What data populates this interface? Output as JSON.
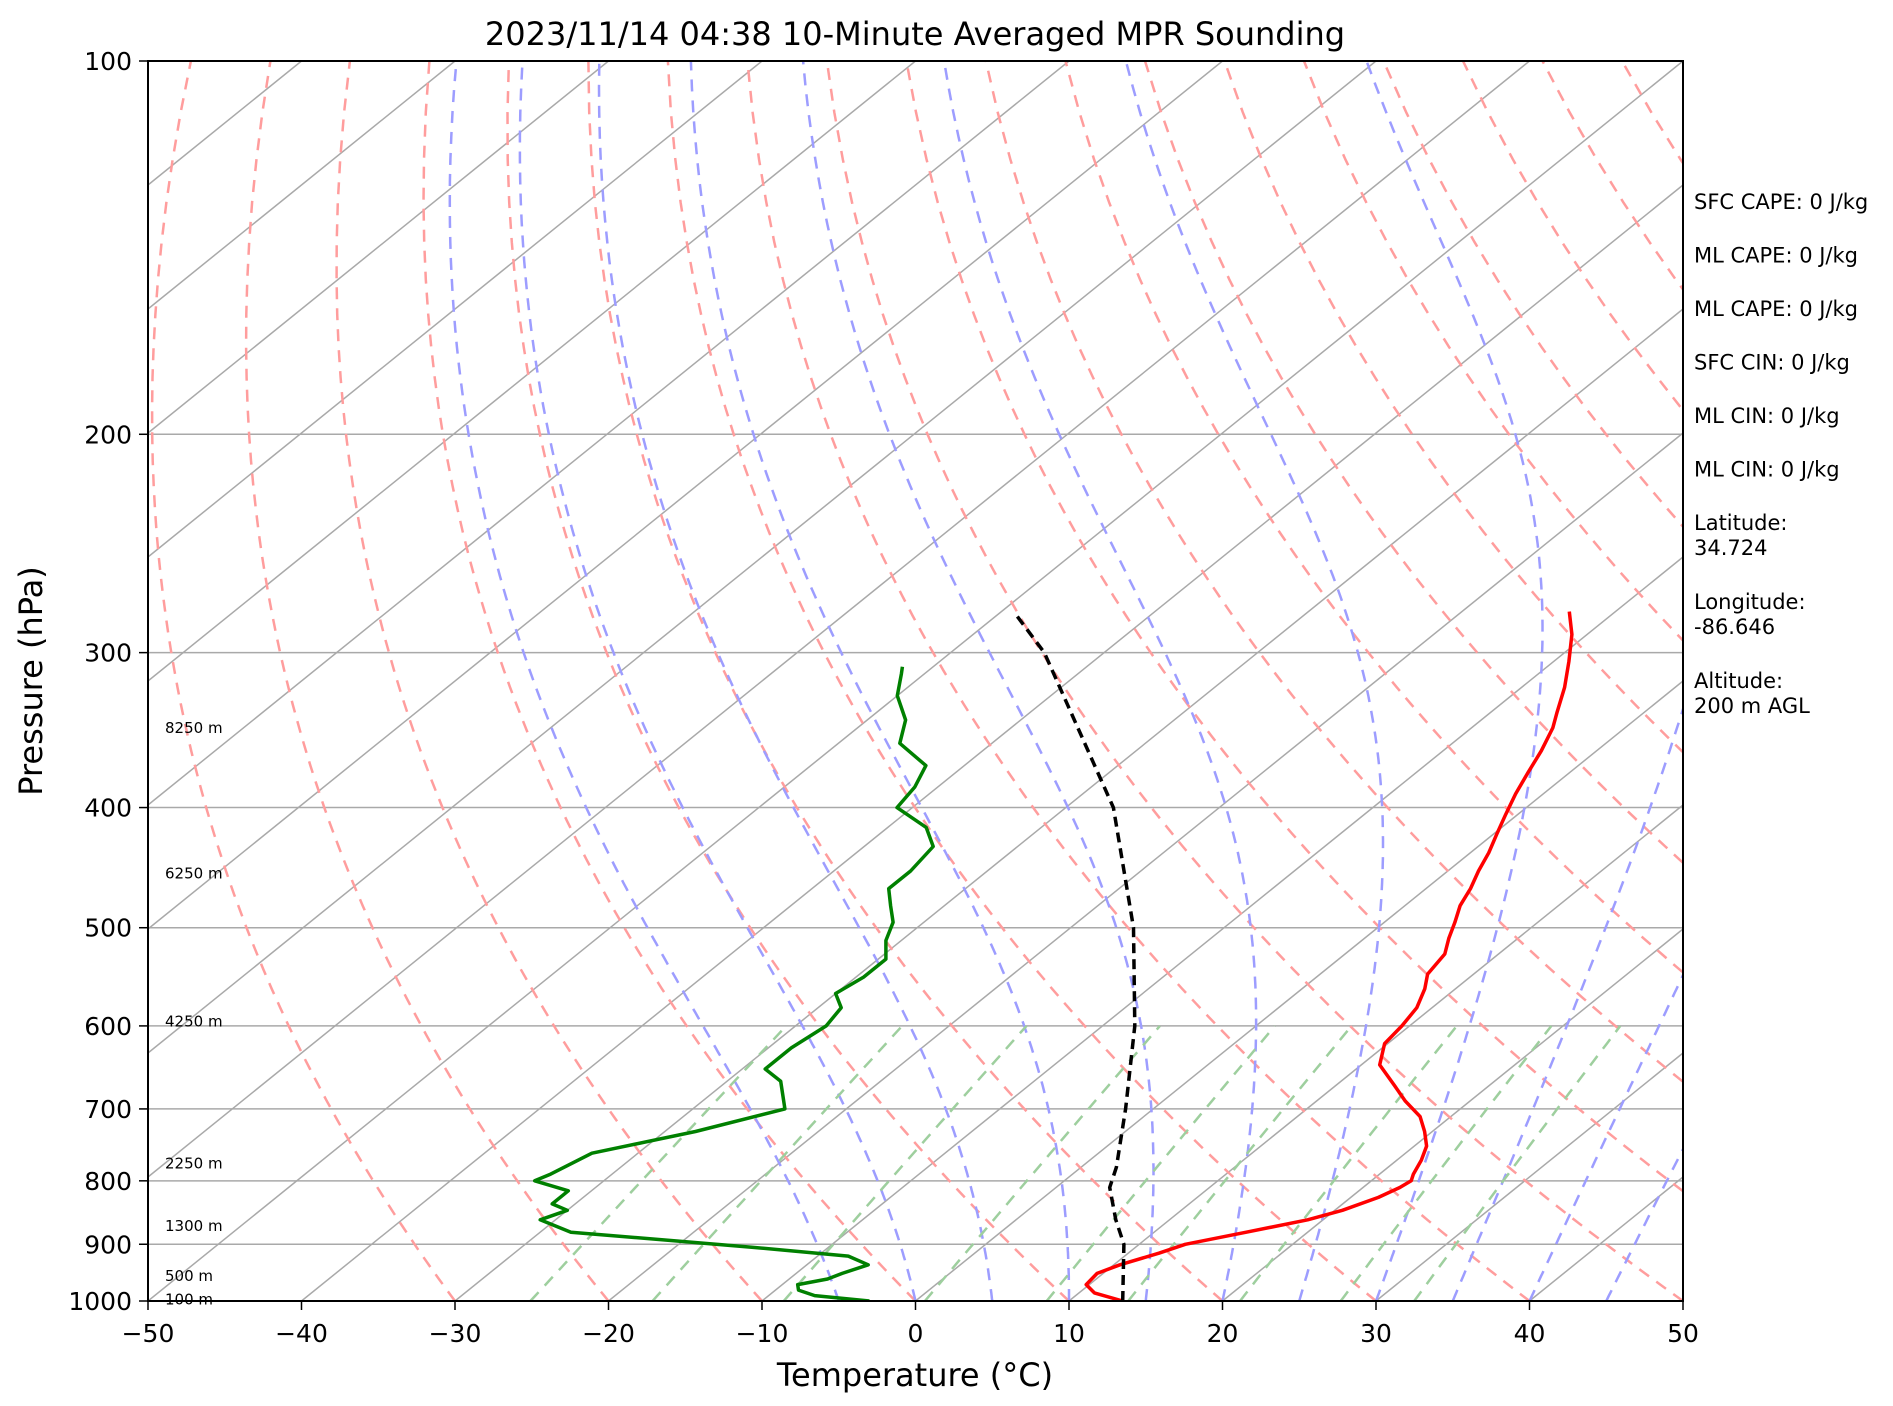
{
  "chart_data": {
    "type": "line",
    "title": "2023/11/14 04:38 10-Minute Averaged MPR Sounding",
    "xlabel": "Temperature (°C)",
    "ylabel": "Pressure (hPa)",
    "xlim": [
      -50,
      50
    ],
    "ylim": [
      1000,
      100
    ],
    "y_scale": "log",
    "x_ticks": [
      -50,
      -40,
      -30,
      -20,
      -10,
      0,
      10,
      20,
      30,
      40,
      50
    ],
    "x_tick_labels": [
      "−50",
      "−40",
      "−30",
      "−20",
      "−10",
      "0",
      "10",
      "20",
      "30",
      "40",
      "50"
    ],
    "y_ticks": [
      100,
      200,
      300,
      400,
      500,
      600,
      700,
      800,
      900,
      1000
    ],
    "y_tick_labels": [
      "100",
      "200",
      "300",
      "400",
      "500",
      "600",
      "700",
      "800",
      "900",
      "1000"
    ],
    "skew": 1.0,
    "grid": true,
    "series": [
      {
        "name": "",
        "role": "temperature",
        "color": "#ff0000",
        "style": "solid",
        "p": [
          1000,
          985,
          970,
          950,
          935,
          915,
          900,
          880,
          860,
          845,
          825,
          810,
          800,
          790,
          770,
          750,
          730,
          710,
          690,
          670,
          645,
          620,
          600,
          580,
          560,
          545,
          525,
          510,
          495,
          480,
          465,
          450,
          435,
          420,
          405,
          390,
          375,
          360,
          345,
          335,
          320,
          305,
          290,
          278
        ],
        "t": [
          13.5,
          11,
          9.8,
          9.6,
          10.4,
          12,
          13,
          16,
          19,
          20.5,
          21.8,
          22.4,
          22.6,
          22.2,
          21.6,
          20.8,
          19.5,
          18,
          15.8,
          13.8,
          11.2,
          9.8,
          9.5,
          9,
          8,
          7,
          6.5,
          5.5,
          4.6,
          3.6,
          2.9,
          2,
          1.2,
          0.2,
          -0.8,
          -1.8,
          -2.7,
          -3.6,
          -4.7,
          -5.7,
          -7.2,
          -9,
          -11,
          -13
        ]
      },
      {
        "name": "",
        "role": "dewpoint",
        "color": "#008000",
        "style": "solid",
        "p": [
          1000,
          990,
          980,
          970,
          960,
          950,
          935,
          920,
          905,
          880,
          860,
          845,
          835,
          815,
          800,
          790,
          760,
          730,
          700,
          665,
          650,
          625,
          600,
          580,
          565,
          548,
          530,
          512,
          495,
          480,
          465,
          450,
          430,
          415,
          400,
          385,
          370,
          355,
          340,
          325,
          312,
          308
        ],
        "t": [
          -3,
          -7,
          -8.5,
          -9,
          -7.5,
          -7,
          -6,
          -8,
          -15,
          -28,
          -31,
          -30,
          -31.5,
          -31.5,
          -34.5,
          -34,
          -33,
          -28,
          -24,
          -26.5,
          -28.5,
          -28.5,
          -28,
          -28.5,
          -30,
          -29.5,
          -29.5,
          -31,
          -32,
          -33.5,
          -35,
          -35,
          -35.5,
          -37.5,
          -41,
          -41.5,
          -42.5,
          -46,
          -47.5,
          -50,
          -51.5,
          -52
        ]
      },
      {
        "name": "",
        "role": "parcel",
        "color": "#000000",
        "style": "dashed",
        "p": [
          1000,
          900,
          860,
          810,
          780,
          700,
          600,
          500,
          400,
          300,
          280
        ],
        "t": [
          13.5,
          9,
          6.5,
          3.5,
          2.3,
          -1.8,
          -7.9,
          -15.9,
          -26.9,
          -43.9,
          -48.7
        ]
      }
    ],
    "height_labels": [
      "100 m",
      "500 m",
      "1300 m",
      "2250 m",
      "4250 m",
      "6250 m",
      "8250 m"
    ],
    "height_label_pressures": [
      997,
      955,
      870,
      775,
      595,
      452,
      345
    ],
    "annotations": [
      "SFC CAPE: 0 J/kg",
      "ML CAPE: 0 J/kg",
      "ML CAPE: 0 J/kg",
      "SFC CIN: 0 J/kg",
      "ML CIN: 0 J/kg",
      "ML CIN: 0 J/kg",
      "Latitude:\n34.724",
      "Longitude:\n-86.646",
      "Altitude:\n200 m AGL"
    ],
    "dry_adiabat_thetas_c": [
      -30,
      -20,
      -10,
      0,
      10,
      20,
      30,
      40,
      50,
      60,
      70,
      80,
      90,
      100,
      110,
      120,
      130,
      140,
      150
    ],
    "moist_adiabat_base_temps_c": [
      -5,
      0,
      5,
      10,
      15,
      20,
      25,
      30,
      35,
      40,
      45
    ],
    "mixing_ratio_lines_gkg": [
      0.5,
      1,
      2,
      4,
      7,
      10,
      16,
      24,
      32
    ],
    "colors": {
      "isotherm": "#a9a9a9",
      "isobar": "#a9a9a9",
      "dry_adiabat": "#ff9d9d",
      "moist_adiabat": "#9d9dff",
      "mixing_ratio": "#9ecf9e",
      "frame": "#000000"
    }
  }
}
